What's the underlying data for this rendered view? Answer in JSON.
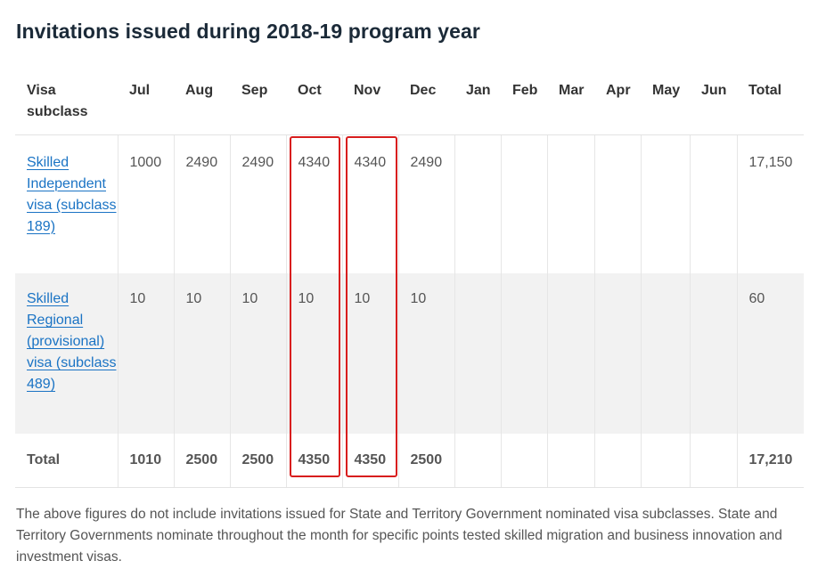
{
  "title": "Invitations issued during 2018-19 program year",
  "table": {
    "headers": [
      "Visa subclass",
      "Jul",
      "Aug",
      "Sep",
      "Oct",
      "Nov",
      "Dec",
      "Jan",
      "Feb",
      "Mar",
      "Apr",
      "May",
      "Jun",
      "Total"
    ],
    "rows": [
      {
        "visa": "Skilled Independent visa (subclass 189)",
        "months": [
          "1000",
          "2490",
          "2490",
          "4340",
          "4340",
          "2490",
          "",
          "",
          "",
          "",
          "",
          ""
        ],
        "total": "17,150"
      },
      {
        "visa": "Skilled Regional (provisional) visa (subclass 489)",
        "months": [
          "10",
          "10",
          "10",
          "10",
          "10",
          "10",
          "",
          "",
          "",
          "",
          "",
          ""
        ],
        "total": "60"
      }
    ],
    "total_row": {
      "label": "Total",
      "months": [
        "1010",
        "2500",
        "2500",
        "4350",
        "4350",
        "2500",
        "",
        "",
        "",
        "",
        "",
        ""
      ],
      "total": "17,210"
    }
  },
  "highlighted_columns": [
    "Oct",
    "Nov"
  ],
  "footnote": "The above figures do not include invitations issued for State and Territory Government nominated visa subclasses. State and Territory Governments nominate throughout the month for specific points tested skilled migration and business innovation and investment visas.",
  "colors": {
    "link": "#1a73c4",
    "highlight": "#d81e1e",
    "row_alt": "#f2f2f2"
  }
}
